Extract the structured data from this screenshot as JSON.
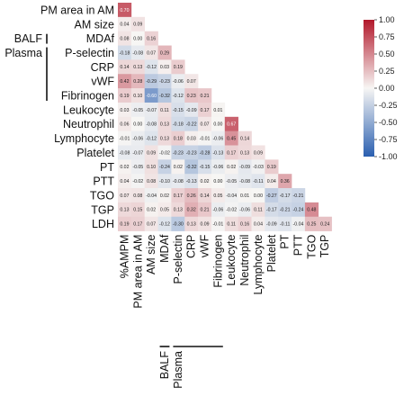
{
  "chart_data": {
    "type": "heatmap",
    "variables": [
      "%AMPM",
      "PM area in AM",
      "AM size",
      "MDAf",
      "P-selectin",
      "CRP",
      "vWF",
      "Fibrinogen",
      "Leukocyte",
      "Neutrophil",
      "Lymphocyte",
      "Platelet",
      "PT",
      "PTT",
      "TGO",
      "TGP",
      "LDH"
    ],
    "row_labels": [
      "PM area in AM",
      "AM size",
      "MDAf",
      "P-selectin",
      "CRP",
      "vWF",
      "Fibrinogen",
      "Leukocyte",
      "Neutrophil",
      "Lymphocyte",
      "Platelet",
      "PT",
      "PTT",
      "TGO",
      "TGP",
      "LDH"
    ],
    "col_labels": [
      "%AMPM",
      "PM area in AM",
      "AM size",
      "MDAf",
      "P-selectin",
      "CRP",
      "vWF",
      "Fibrinogen",
      "Leukocyte",
      "Neutrophil",
      "Lymphocyte",
      "Platelet",
      "PT",
      "PTT",
      "TGO",
      "TGP"
    ],
    "groups": [
      {
        "label": "BALF",
        "variables": [
          "MDAf"
        ]
      },
      {
        "label": "Plasma",
        "variables": [
          "P-selectin",
          "CRP",
          "vWF",
          "Fibrinogen"
        ]
      }
    ],
    "values": [
      [
        0.7
      ],
      [
        0.04,
        0.09
      ],
      [
        0.08,
        0.0,
        0.16
      ],
      [
        -0.18,
        -0.08,
        0.07,
        0.29
      ],
      [
        0.14,
        0.13,
        -0.12,
        0.03,
        0.19
      ],
      [
        0.42,
        0.28,
        -0.29,
        -0.23,
        -0.06,
        0.07
      ],
      [
        0.19,
        0.1,
        -0.6,
        -0.32,
        -0.12,
        0.23,
        0.21
      ],
      [
        0.03,
        -0.05,
        -0.07,
        0.11,
        -0.15,
        -0.09,
        0.17,
        0.01
      ],
      [
        0.06,
        0.0,
        -0.08,
        0.13,
        -0.18,
        -0.22,
        0.07,
        0.0,
        0.67
      ],
      [
        -0.01,
        -0.06,
        -0.12,
        0.13,
        0.18,
        0.03,
        -0.01,
        -0.06,
        0.45,
        0.14
      ],
      [
        -0.08,
        -0.07,
        0.09,
        -0.02,
        -0.23,
        -0.23,
        -0.28,
        -0.13,
        0.17,
        0.13,
        0.09
      ],
      [
        0.02,
        -0.05,
        0.1,
        -0.24,
        0.02,
        -0.32,
        -0.15,
        -0.06,
        0.02,
        -0.09,
        -0.03,
        0.19
      ],
      [
        0.04,
        -0.02,
        0.08,
        -0.1,
        -0.08,
        -0.13,
        0.02,
        0.0,
        -0.05,
        -0.08,
        -0.11,
        0.04,
        0.36
      ],
      [
        0.07,
        0.08,
        -0.04,
        0.02,
        0.17,
        0.26,
        0.14,
        0.05,
        -0.04,
        0.01,
        0.0,
        -0.27,
        -0.17,
        -0.21
      ],
      [
        0.13,
        0.15,
        0.02,
        0.05,
        0.13,
        0.32,
        0.21,
        -0.06,
        -0.02,
        -0.06,
        0.11,
        -0.17,
        -0.21,
        -0.24,
        0.48
      ],
      [
        0.19,
        0.17,
        0.07,
        -0.12,
        -0.3,
        0.13,
        0.09,
        -0.01,
        0.11,
        0.16,
        0.04,
        -0.09,
        -0.11,
        -0.04,
        0.25,
        0.24
      ]
    ],
    "colorbar": {
      "ticks": [
        "1.00",
        "0.75",
        "0.50",
        "0.25",
        "0.00",
        "-0.25",
        "-0.50",
        "-0.75",
        "-1.00"
      ],
      "range": [
        -1,
        1
      ],
      "colors": {
        "negative": "#2a5fb0",
        "zero": "#f7f6f4",
        "positive": "#b2182b"
      }
    }
  }
}
